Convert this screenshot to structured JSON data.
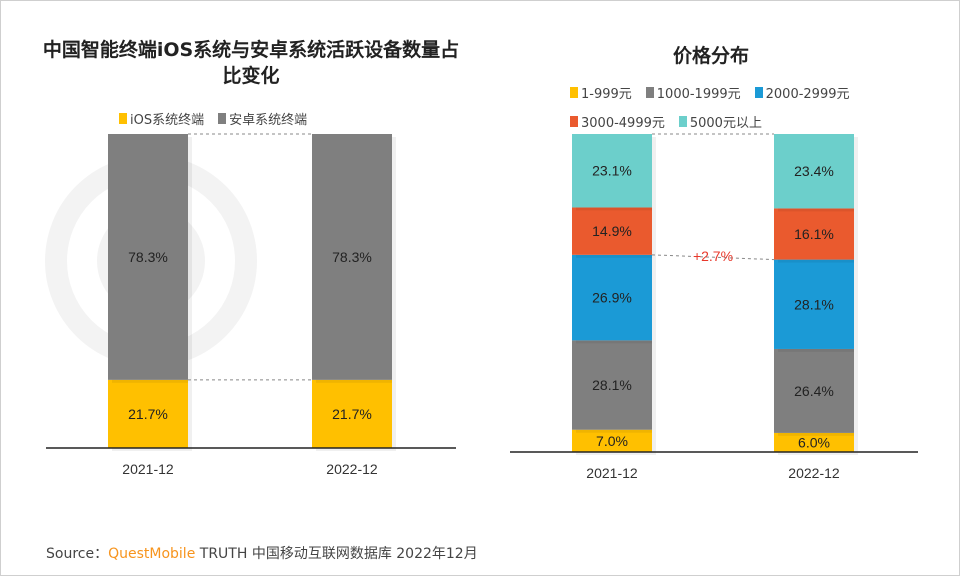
{
  "watermark": "QUESTMOBILE",
  "chart_data": [
    {
      "type": "bar",
      "stacked": true,
      "normalized": true,
      "title": "中国智能终端iOS系统与安卓系统活跃设备数量占比变化",
      "categories": [
        "2021-12",
        "2022-12"
      ],
      "series": [
        {
          "name": "iOS系统终端",
          "values": [
            21.7,
            21.7
          ],
          "color": "#ffc000"
        },
        {
          "name": "安卓系统终端",
          "values": [
            78.3,
            78.3
          ],
          "color": "#7f7f7f"
        }
      ],
      "ylim": [
        0,
        100
      ],
      "legend": "top"
    },
    {
      "type": "bar",
      "stacked": true,
      "normalized": true,
      "title": "价格分布",
      "categories": [
        "2021-12",
        "2022-12"
      ],
      "series": [
        {
          "name": "1-999元",
          "values": [
            7.0,
            6.0
          ],
          "color": "#ffc000"
        },
        {
          "name": "1000-1999元",
          "values": [
            28.1,
            26.4
          ],
          "color": "#7f7f7f"
        },
        {
          "name": "2000-2999元",
          "values": [
            26.9,
            28.1
          ],
          "color": "#1b9ad6"
        },
        {
          "name": "3000-4999元",
          "values": [
            14.9,
            16.1
          ],
          "color": "#ea5a2e"
        },
        {
          "name": "5000元以上",
          "values": [
            23.1,
            23.4
          ],
          "color": "#6ccfcb"
        }
      ],
      "annotation": "+2.7%",
      "annotation_color": "#e8382b",
      "ylim": [
        0,
        100
      ],
      "legend": "top"
    }
  ],
  "source": {
    "label": "Source：",
    "brand": "QuestMobile",
    "text": " TRUTH 中国移动互联网数据库 2022年12月"
  }
}
